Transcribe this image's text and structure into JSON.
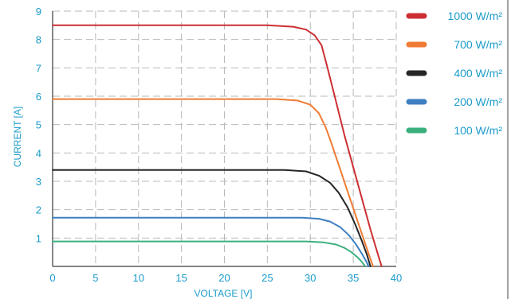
{
  "chart_data": {
    "type": "line",
    "xlabel": "VOLTAGE [V]",
    "ylabel": "CURRENT [A]",
    "xlim": [
      0,
      40
    ],
    "ylim": [
      0,
      9
    ],
    "x_ticks": [
      "0",
      "5",
      "10",
      "15",
      "20",
      "25",
      "30",
      "35",
      "40"
    ],
    "y_ticks": [
      "1",
      "2",
      "3",
      "4",
      "5",
      "6",
      "7",
      "8",
      "9"
    ],
    "grid": true,
    "legend_position": "right",
    "series": [
      {
        "name": "1000 W/m²",
        "color": "#cc2f33",
        "points": [
          [
            0,
            8.5
          ],
          [
            25,
            8.5
          ],
          [
            28,
            8.45
          ],
          [
            29.5,
            8.35
          ],
          [
            30.5,
            8.15
          ],
          [
            31.3,
            7.8
          ],
          [
            32,
            7.0
          ],
          [
            33,
            5.8
          ],
          [
            34,
            4.6
          ],
          [
            35,
            3.5
          ],
          [
            36,
            2.4
          ],
          [
            37,
            1.3
          ],
          [
            38,
            0.3
          ],
          [
            38.3,
            0.0
          ]
        ]
      },
      {
        "name": "700 W/m²",
        "color": "#f07b34",
        "points": [
          [
            0,
            5.9
          ],
          [
            26,
            5.9
          ],
          [
            28.5,
            5.85
          ],
          [
            30,
            5.7
          ],
          [
            31,
            5.4
          ],
          [
            31.8,
            4.9
          ],
          [
            32.5,
            4.3
          ],
          [
            33.5,
            3.4
          ],
          [
            34.5,
            2.5
          ],
          [
            35.5,
            1.6
          ],
          [
            36.5,
            0.7
          ],
          [
            37.3,
            0.0
          ]
        ]
      },
      {
        "name": "400 W/m²",
        "color": "#262626",
        "points": [
          [
            0,
            3.4
          ],
          [
            27,
            3.4
          ],
          [
            29.5,
            3.35
          ],
          [
            31,
            3.2
          ],
          [
            32.3,
            2.95
          ],
          [
            33.3,
            2.6
          ],
          [
            34.3,
            2.1
          ],
          [
            35.2,
            1.5
          ],
          [
            36,
            0.9
          ],
          [
            36.6,
            0.4
          ],
          [
            37.0,
            0.0
          ]
        ]
      },
      {
        "name": "200 W/m²",
        "color": "#3d7fc1",
        "points": [
          [
            0,
            1.72
          ],
          [
            29,
            1.72
          ],
          [
            31,
            1.68
          ],
          [
            32.3,
            1.58
          ],
          [
            33.5,
            1.38
          ],
          [
            34.5,
            1.1
          ],
          [
            35.3,
            0.78
          ],
          [
            36,
            0.45
          ],
          [
            36.5,
            0.18
          ],
          [
            36.8,
            0.0
          ]
        ]
      },
      {
        "name": "100 W/m²",
        "color": "#3bb07f",
        "points": [
          [
            0,
            0.88
          ],
          [
            29.5,
            0.88
          ],
          [
            31.5,
            0.85
          ],
          [
            33,
            0.77
          ],
          [
            34,
            0.65
          ],
          [
            34.8,
            0.5
          ],
          [
            35.5,
            0.32
          ],
          [
            36,
            0.16
          ],
          [
            36.4,
            0.0
          ]
        ]
      }
    ]
  }
}
